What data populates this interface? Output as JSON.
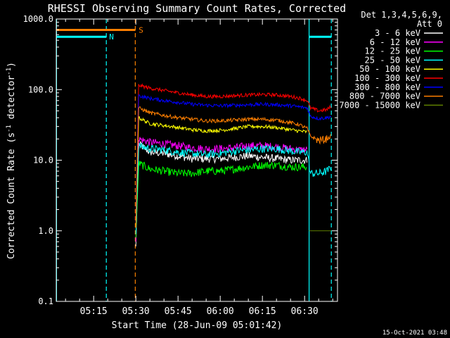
{
  "chart_data": {
    "type": "line",
    "title": "RHESSI Observing Summary Count Rates, Corrected",
    "xlabel": "Start Time (28-Jun-09 05:01:42)",
    "ylabel": "Corrected Count Rate (s",
    "ylabel_sup1": "-1",
    "ylabel_mid": " detector",
    "ylabel_sup2": "-1",
    "ylabel_end": ")",
    "y_scale": "log",
    "ylim": [
      0.1,
      1000
    ],
    "y_ticks": [
      {
        "value": 0.1,
        "label": "0.1"
      },
      {
        "value": 1,
        "label": "1.0"
      },
      {
        "value": 10,
        "label": "10.0"
      },
      {
        "value": 100,
        "label": "100.0"
      },
      {
        "value": 1000,
        "label": "1000.0"
      }
    ],
    "xlim_minutes": [
      301.7,
      401.7
    ],
    "x_ticks": [
      {
        "minute": 315,
        "label": "05:15"
      },
      {
        "minute": 330,
        "label": "05:30"
      },
      {
        "minute": 345,
        "label": "05:45"
      },
      {
        "minute": 360,
        "label": "06:00"
      },
      {
        "minute": 375,
        "label": "06:15"
      },
      {
        "minute": 390,
        "label": "06:30"
      }
    ],
    "legend_header": [
      "Det 1,3,4,5,6,9,",
      "Att 0"
    ],
    "legend_placement": "right",
    "flag_bars": [
      {
        "label": "N",
        "color": "#00ffff",
        "y": 560,
        "segments": [
          [
            301.7,
            319.5
          ],
          [
            391.5,
            399.5
          ]
        ],
        "label_at": 320.5
      },
      {
        "label": "S",
        "color": "#ff7f00",
        "y": 700,
        "segments": [
          [
            301.7,
            329.8
          ]
        ],
        "label_at": 331
      }
    ],
    "vlines": [
      {
        "minute": 301.8,
        "color": "#00ffff",
        "style": "solid"
      },
      {
        "minute": 319.5,
        "color": "#00ffff",
        "style": "dashed"
      },
      {
        "minute": 329.8,
        "color": "#ff7f00",
        "style": "dashed"
      },
      {
        "minute": 391.6,
        "color": "#00ffff",
        "style": "solid"
      },
      {
        "minute": 399.5,
        "color": "#00ffff",
        "style": "dashed"
      }
    ],
    "series": [
      {
        "name": "3 - 6 keV",
        "color": "#ffffff",
        "x": [
          330,
          331,
          335,
          340,
          345,
          350,
          355,
          360,
          365,
          370,
          375,
          380,
          385,
          388,
          391
        ],
        "y": [
          0.6,
          17,
          13,
          12.5,
          11.5,
          10.5,
          10.5,
          10.5,
          11,
          11.5,
          11,
          10.5,
          10,
          10,
          10
        ]
      },
      {
        "name": "6 - 12 keV",
        "color": "#ff00ff",
        "x": [
          330,
          331,
          335,
          340,
          345,
          350,
          355,
          360,
          365,
          370,
          375,
          380,
          385,
          388,
          391
        ],
        "y": [
          0.7,
          20,
          18,
          17,
          16,
          15,
          14.5,
          14.5,
          15,
          16,
          16,
          15.5,
          14.5,
          14,
          14
        ]
      },
      {
        "name": "12 - 25 keV",
        "color": "#00ff00",
        "x": [
          330,
          331,
          335,
          340,
          345,
          350,
          355,
          360,
          365,
          370,
          375,
          380,
          385,
          388,
          391
        ],
        "y": [
          0.8,
          9,
          7.5,
          7,
          6.5,
          6.5,
          7,
          7,
          7.5,
          8,
          8.5,
          8.5,
          8,
          8,
          8
        ]
      },
      {
        "name": "25 - 50 keV",
        "color": "#00ffff",
        "x": [
          330,
          331,
          335,
          340,
          345,
          350,
          355,
          360,
          365,
          370,
          375,
          380,
          385,
          388,
          391,
          392,
          395,
          398,
          399.5
        ],
        "y": [
          0.9,
          16,
          14.5,
          14,
          13,
          12.5,
          12,
          12.5,
          13.5,
          14,
          14.5,
          14.5,
          13.5,
          13,
          13,
          6.5,
          6.5,
          7,
          8
        ]
      },
      {
        "name": "50 - 100 keV",
        "color": "#ffff00",
        "x": [
          330,
          331,
          335,
          340,
          345,
          350,
          355,
          360,
          365,
          370,
          375,
          380,
          385,
          388,
          391
        ],
        "y": [
          1.2,
          40,
          33,
          31,
          29,
          27,
          26,
          26.5,
          28,
          30,
          30,
          29,
          27,
          26,
          25
        ]
      },
      {
        "name": "100 - 300 keV",
        "color": "#ff0000",
        "x": [
          330,
          331,
          335,
          340,
          345,
          350,
          355,
          360,
          365,
          370,
          375,
          380,
          385,
          388,
          391,
          392,
          395,
          398,
          399.5
        ],
        "y": [
          1.5,
          115,
          105,
          97,
          90,
          84,
          80,
          80,
          82,
          84,
          85,
          84,
          80,
          76,
          70,
          55,
          50,
          52,
          58
        ]
      },
      {
        "name": "300 - 800 keV",
        "color": "#0000ff",
        "x": [
          330,
          331,
          335,
          340,
          345,
          350,
          355,
          360,
          365,
          370,
          375,
          380,
          385,
          388,
          391,
          392,
          395,
          398,
          399.5
        ],
        "y": [
          1.3,
          82,
          75,
          70,
          66,
          62,
          60,
          59,
          60,
          61,
          62,
          61,
          59,
          57,
          55,
          42,
          39,
          40,
          42
        ]
      },
      {
        "name": "800 - 7000 keV",
        "color": "#ff7f00",
        "x": [
          330,
          331,
          335,
          340,
          345,
          350,
          355,
          360,
          365,
          370,
          375,
          380,
          385,
          388,
          391,
          392,
          395,
          398,
          399.5
        ],
        "y": [
          1.1,
          55,
          47,
          43,
          40,
          38,
          36,
          36,
          37,
          38,
          38,
          37,
          34,
          32,
          28,
          22,
          19,
          20,
          22
        ]
      },
      {
        "name": "7000 - 15000 keV",
        "color": "#5f7f00",
        "x": [
          391.6,
          399.5
        ],
        "y": [
          1.0,
          1.0
        ]
      }
    ]
  },
  "footer": {
    "date": "15-Oct-2021 03:48"
  }
}
